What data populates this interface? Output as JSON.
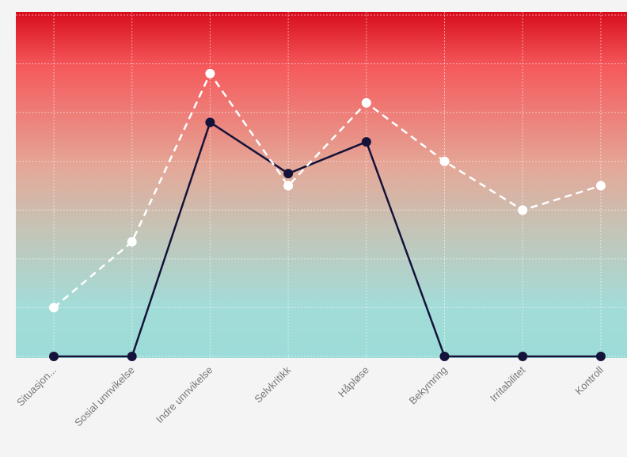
{
  "chart_data": {
    "type": "line",
    "categories": [
      "Situasjon...",
      "Sosial unnvikelse",
      "Indre unnvikelse",
      "Selvkritikk",
      "Håpløse",
      "Bekymring",
      "Irritabilitet",
      "Kontroll"
    ],
    "series": [
      {
        "values": [
          0,
          0,
          4.8,
          3.75,
          4.4,
          0,
          0,
          0
        ],
        "color": "#15133a",
        "style": "solid"
      },
      {
        "values": [
          1.0,
          2.35,
          5.8,
          3.5,
          5.2,
          4.0,
          3.0,
          3.5
        ],
        "color": "#ffffff",
        "style": "dashed"
      }
    ],
    "ylim": [
      0,
      7
    ],
    "grid": true,
    "background_gradient": [
      "#d80c1d",
      "#f55a5c",
      "#e4a898",
      "#c6c3b5",
      "#a3dcd8",
      "#9cdcd8"
    ]
  }
}
